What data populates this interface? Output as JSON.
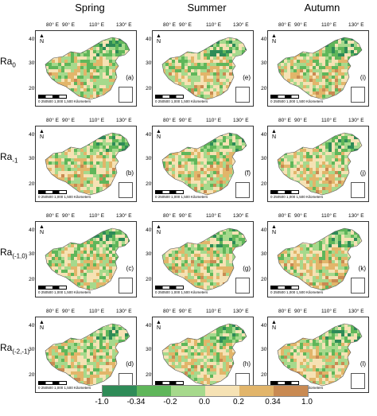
{
  "columns": [
    "Spring",
    "Summer",
    "Autumn"
  ],
  "rows": [
    {
      "base": "Ra",
      "sub": "0"
    },
    {
      "base": "Ra",
      "sub": "-1"
    },
    {
      "base": "Ra",
      "sub": "(-1,0)"
    },
    {
      "base": "Ra",
      "sub": "(-2,-1)"
    }
  ],
  "panel_letters": [
    [
      "(a)",
      "(e)",
      "(i)"
    ],
    [
      "(b)",
      "(f)",
      "(j)"
    ],
    [
      "(c)",
      "(g)",
      "(k)"
    ],
    [
      "(d)",
      "(h)",
      "(l)"
    ]
  ],
  "lon_ticks": [
    "80° E",
    "90° E",
    "110° E",
    "130° E"
  ],
  "lat_ticks": [
    "40° N",
    "30° N",
    "20° N"
  ],
  "north_label": "N",
  "scale_text": "0 250500  1,000  1,500 Kilometers",
  "legend": {
    "ticks": [
      "-1.0",
      "-0.34",
      "-0.2",
      "0.0",
      "0.2",
      "0.34",
      "1.0"
    ],
    "colors": [
      "#2e8b57",
      "#5fb65a",
      "#a6d98c",
      "#f6e2b4",
      "#e2b56a",
      "#c98a52"
    ]
  }
}
